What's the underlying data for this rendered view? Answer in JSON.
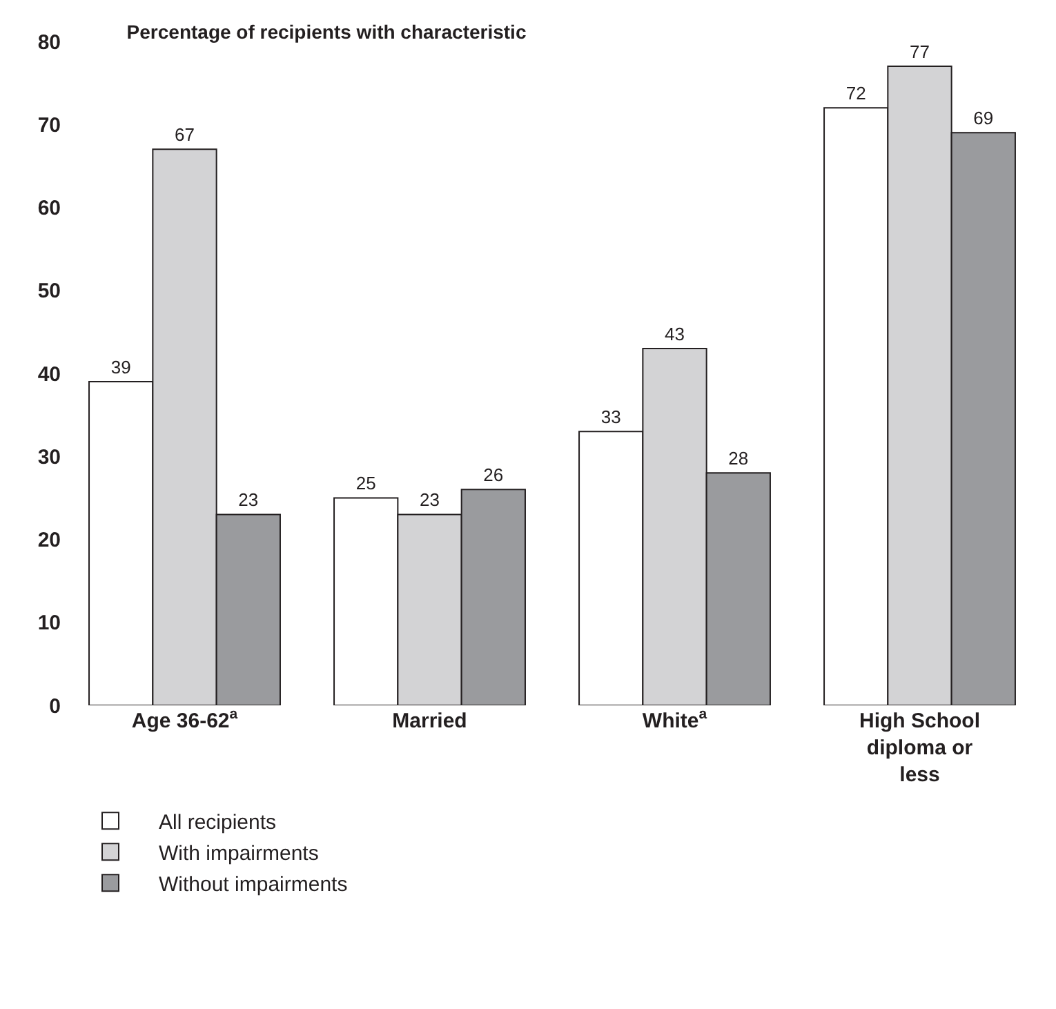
{
  "chart_data": {
    "type": "bar",
    "title": "Percentage of recipients with characteristic",
    "categories": [
      "Age 36-62$^{a}$",
      "Married",
      "White$^{a}$",
      "High School diploma or less"
    ],
    "series": [
      {
        "name": "All recipients",
        "color": "#ffffff",
        "values": [
          39,
          25,
          33,
          72
        ]
      },
      {
        "name": "With impairments",
        "color": "#d3d3d5",
        "values": [
          67,
          23,
          43,
          77
        ]
      },
      {
        "name": "Without impairments",
        "color": "#9a9b9e",
        "values": [
          23,
          26,
          28,
          69
        ]
      }
    ],
    "ylim": [
      0,
      80
    ],
    "yticks": [
      0,
      10,
      20,
      30,
      40,
      50,
      60,
      70,
      80
    ],
    "grid": false,
    "legend": "bottom left",
    "data_labels": true
  }
}
